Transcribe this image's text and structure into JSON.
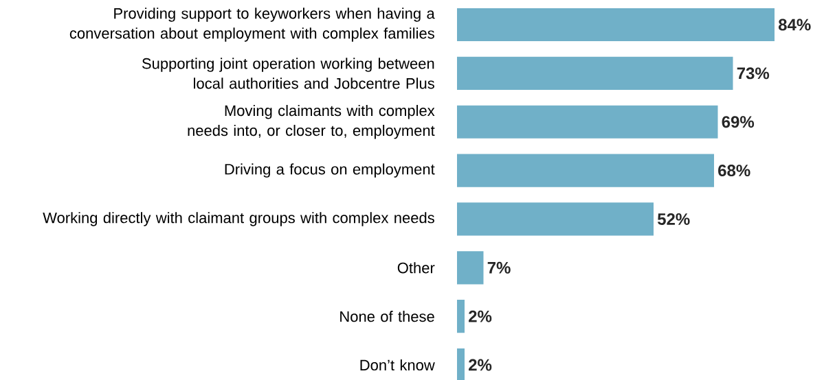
{
  "chart_data": {
    "type": "bar",
    "orientation": "horizontal",
    "color": "#70b0c8",
    "categories": [
      "Providing support to keyworkers when having a conversation about employment with complex families",
      "Supporting joint operation working between local authorities and Jobcentre Plus",
      "Moving claimants with complex needs into, or closer to, employment",
      "Driving a focus on employment",
      "Working directly with claimant groups with complex needs",
      "Other",
      "None of these",
      "Don’t know"
    ],
    "values": [
      84,
      73,
      69,
      68,
      52,
      7,
      2,
      2
    ],
    "value_labels": [
      "84%",
      "73%",
      "69%",
      "68%",
      "52%",
      "7%",
      "2%",
      "2%"
    ]
  }
}
